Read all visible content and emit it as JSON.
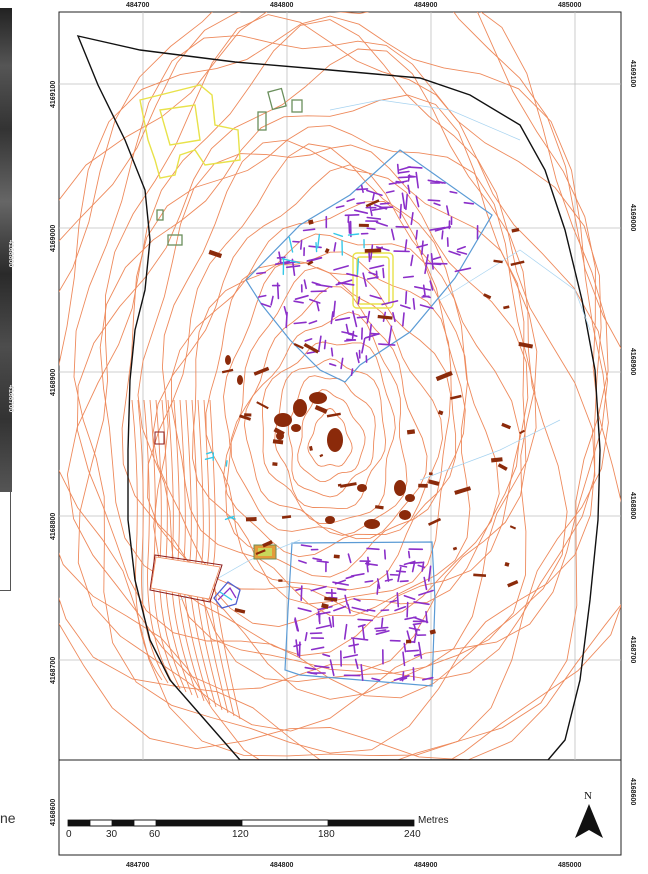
{
  "map": {
    "eastings": [
      "484700",
      "484800",
      "484900",
      "485000"
    ],
    "northings": [
      "4169100",
      "4169000",
      "4168900",
      "4168800",
      "4168700",
      "4168600"
    ],
    "left_image_labels": [
      "4168800",
      "4168700"
    ],
    "colors": {
      "contour": "#ee8a5c",
      "grid": "#bfbfbf",
      "site_boundary": "#111111",
      "survey_boundary": "#5b9bd5",
      "features_purple": "#8b2fc9",
      "features_brown": "#8b2a0a",
      "features_cyan": "#35c8e8",
      "features_yellow": "#e8e24a",
      "features_green": "#6a8f5c"
    }
  },
  "scale_bar": {
    "ticks": [
      "0",
      "30",
      "60",
      "120",
      "180",
      "240"
    ],
    "unit": "Metres"
  },
  "north_arrow": {
    "label": "N"
  },
  "margin_text": "ne"
}
